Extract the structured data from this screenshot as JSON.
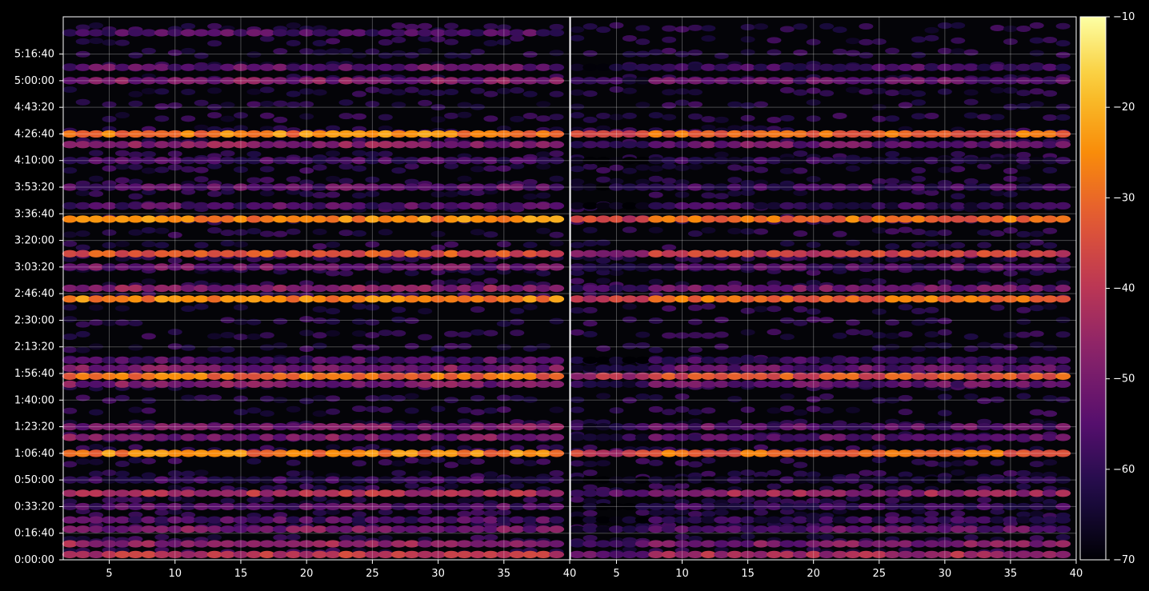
{
  "chart_data": {
    "type": "heatmap",
    "title": "",
    "xlabel": "",
    "ylabel": "",
    "panels": [
      {
        "name": "",
        "x_range": [
          1.5,
          40
        ],
        "x_ticks": [
          5,
          10,
          15,
          20,
          25,
          30,
          35,
          40
        ]
      },
      {
        "name": "",
        "x_range": [
          1.5,
          40
        ],
        "x_ticks": [
          5,
          10,
          15,
          20,
          25,
          30,
          35,
          40
        ]
      }
    ],
    "y_range_seconds": [
      0,
      20400
    ],
    "y_ticks": [
      {
        "seconds": 0,
        "label": "0:00:00"
      },
      {
        "seconds": 1000,
        "label": "0:16:40"
      },
      {
        "seconds": 2000,
        "label": "0:33:20"
      },
      {
        "seconds": 3000,
        "label": "0:50:00"
      },
      {
        "seconds": 4000,
        "label": "1:06:40"
      },
      {
        "seconds": 5000,
        "label": "1:23:20"
      },
      {
        "seconds": 6000,
        "label": "1:40:00"
      },
      {
        "seconds": 7000,
        "label": "1:56:40"
      },
      {
        "seconds": 8000,
        "label": "2:13:20"
      },
      {
        "seconds": 9000,
        "label": "2:30:00"
      },
      {
        "seconds": 10000,
        "label": "2:46:40"
      },
      {
        "seconds": 11000,
        "label": "3:03:20"
      },
      {
        "seconds": 12000,
        "label": "3:20:00"
      },
      {
        "seconds": 13000,
        "label": "3:36:40"
      },
      {
        "seconds": 14000,
        "label": "3:53:20"
      },
      {
        "seconds": 15000,
        "label": "4:10:00"
      },
      {
        "seconds": 16000,
        "label": "4:26:40"
      },
      {
        "seconds": 17000,
        "label": "4:43:20"
      },
      {
        "seconds": 18000,
        "label": "5:00:00"
      },
      {
        "seconds": 19000,
        "label": "5:16:40"
      }
    ],
    "grid": true,
    "colormap": "inferno",
    "colorbar": {
      "min": -70,
      "max": -10,
      "ticks": [
        -70,
        -60,
        -50,
        -40,
        -30,
        -20,
        -10
      ]
    },
    "bands": [
      {
        "y": 19800,
        "level": -56,
        "panels": [
          1
        ]
      },
      {
        "y": 18500,
        "level": -54,
        "panels": [
          1,
          2
        ]
      },
      {
        "y": 18000,
        "level": -50,
        "panels": [
          1,
          2
        ]
      },
      {
        "y": 16000,
        "level": -27,
        "panels": [
          1,
          2
        ]
      },
      {
        "y": 15600,
        "level": -48,
        "panels": [
          1,
          2
        ]
      },
      {
        "y": 15000,
        "level": -58,
        "panels": [
          1,
          2
        ]
      },
      {
        "y": 14000,
        "level": -54,
        "panels": [
          1,
          2
        ]
      },
      {
        "y": 13300,
        "level": -56,
        "panels": [
          1,
          2
        ]
      },
      {
        "y": 12800,
        "level": -26,
        "panels": [
          1,
          2
        ]
      },
      {
        "y": 11500,
        "level": -34,
        "panels": [
          1,
          2
        ]
      },
      {
        "y": 11000,
        "level": -52,
        "panels": [
          1,
          2
        ]
      },
      {
        "y": 10200,
        "level": -48,
        "panels": [
          1,
          2
        ]
      },
      {
        "y": 9800,
        "level": -26,
        "panels": [
          1,
          2
        ]
      },
      {
        "y": 7500,
        "level": -56,
        "panels": [
          1,
          2
        ]
      },
      {
        "y": 7200,
        "level": -50,
        "panels": [
          1,
          2
        ]
      },
      {
        "y": 6900,
        "level": -30,
        "panels": [
          1,
          2
        ]
      },
      {
        "y": 6600,
        "level": -50,
        "panels": [
          1,
          2
        ]
      },
      {
        "y": 5000,
        "level": -50,
        "panels": [
          1,
          2
        ]
      },
      {
        "y": 4600,
        "level": -50,
        "panels": [
          1,
          2
        ]
      },
      {
        "y": 4000,
        "level": -27,
        "panels": [
          1,
          2
        ]
      },
      {
        "y": 3000,
        "level": -60,
        "panels": [
          1,
          2
        ]
      },
      {
        "y": 2500,
        "level": -42,
        "panels": [
          1,
          2
        ]
      },
      {
        "y": 2000,
        "level": -55,
        "panels": [
          1,
          2
        ]
      },
      {
        "y": 1500,
        "level": -56,
        "panels": [
          1,
          2
        ]
      },
      {
        "y": 1150,
        "level": -50,
        "panels": [
          1,
          2
        ]
      },
      {
        "y": 600,
        "level": -46,
        "panels": [
          1,
          2
        ]
      },
      {
        "y": 200,
        "level": -40,
        "panels": [
          1,
          2
        ]
      }
    ]
  }
}
